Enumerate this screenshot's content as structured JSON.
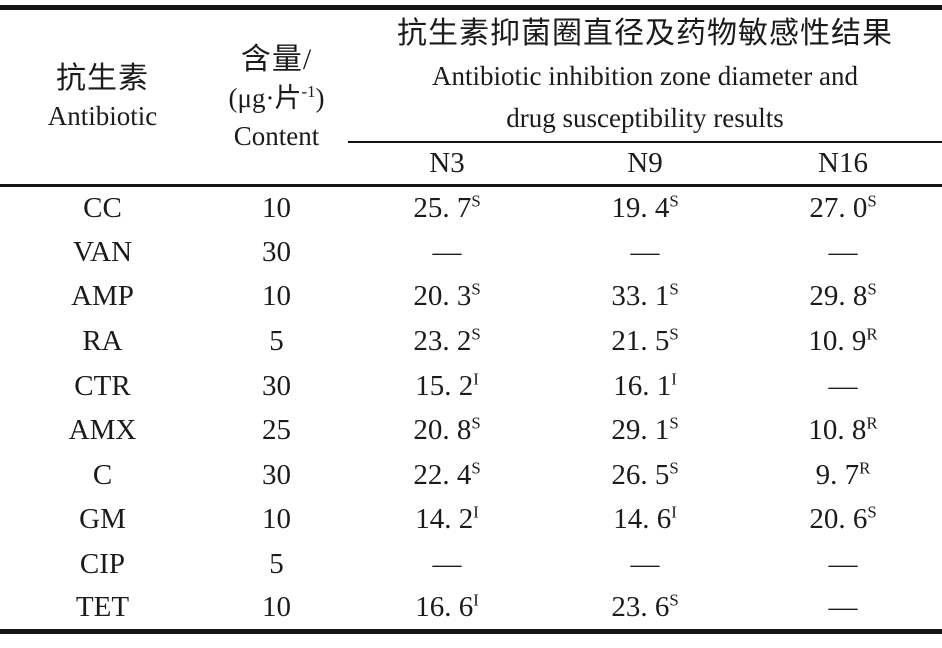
{
  "table": {
    "header": {
      "antibiotic_zh": "抗生素",
      "antibiotic_en": "Antibiotic",
      "content_zh": "含量/",
      "content_unit_pre": "(μg·片",
      "content_unit_sup": "-1",
      "content_unit_post": ")",
      "content_en": "Content",
      "span_zh": "抗生素抑菌圈直径及药物敏感性结果",
      "span_en_line1": "Antibiotic inhibition zone diameter and",
      "span_en_line2": "drug susceptibility results",
      "sample_cols": [
        "N3",
        "N9",
        "N16"
      ]
    },
    "rows": [
      {
        "antibiotic": "CC",
        "content": "10",
        "n3": {
          "v": "25. 7",
          "s": "S"
        },
        "n9": {
          "v": "19. 4",
          "s": "S"
        },
        "n16": {
          "v": "27. 0",
          "s": "S"
        }
      },
      {
        "antibiotic": "VAN",
        "content": "30",
        "n3": {
          "v": "—",
          "s": ""
        },
        "n9": {
          "v": "—",
          "s": ""
        },
        "n16": {
          "v": "—",
          "s": ""
        }
      },
      {
        "antibiotic": "AMP",
        "content": "10",
        "n3": {
          "v": "20. 3",
          "s": "S"
        },
        "n9": {
          "v": "33. 1",
          "s": "S"
        },
        "n16": {
          "v": "29. 8",
          "s": "S"
        }
      },
      {
        "antibiotic": "RA",
        "content": "5",
        "n3": {
          "v": "23. 2",
          "s": "S"
        },
        "n9": {
          "v": "21. 5",
          "s": "S"
        },
        "n16": {
          "v": "10. 9",
          "s": "R"
        }
      },
      {
        "antibiotic": "CTR",
        "content": "30",
        "n3": {
          "v": "15. 2",
          "s": "I"
        },
        "n9": {
          "v": "16. 1",
          "s": "I"
        },
        "n16": {
          "v": "—",
          "s": ""
        }
      },
      {
        "antibiotic": "AMX",
        "content": "25",
        "n3": {
          "v": "20. 8",
          "s": "S"
        },
        "n9": {
          "v": "29. 1",
          "s": "S"
        },
        "n16": {
          "v": "10. 8",
          "s": "R"
        }
      },
      {
        "antibiotic": "C",
        "content": "30",
        "n3": {
          "v": "22. 4",
          "s": "S"
        },
        "n9": {
          "v": "26. 5",
          "s": "S"
        },
        "n16": {
          "v": "9. 7",
          "s": "R"
        }
      },
      {
        "antibiotic": "GM",
        "content": "10",
        "n3": {
          "v": "14. 2",
          "s": "I"
        },
        "n9": {
          "v": "14. 6",
          "s": "I"
        },
        "n16": {
          "v": "20. 6",
          "s": "S"
        }
      },
      {
        "antibiotic": "CIP",
        "content": "5",
        "n3": {
          "v": "—",
          "s": ""
        },
        "n9": {
          "v": "—",
          "s": ""
        },
        "n16": {
          "v": "—",
          "s": ""
        }
      },
      {
        "antibiotic": "TET",
        "content": "10",
        "n3": {
          "v": "16. 6",
          "s": "I"
        },
        "n9": {
          "v": "23. 6",
          "s": "S"
        },
        "n16": {
          "v": "—",
          "s": ""
        }
      }
    ],
    "colors": {
      "text": "#1b1b1b",
      "rule": "#141414",
      "background": "#ffffff"
    }
  }
}
